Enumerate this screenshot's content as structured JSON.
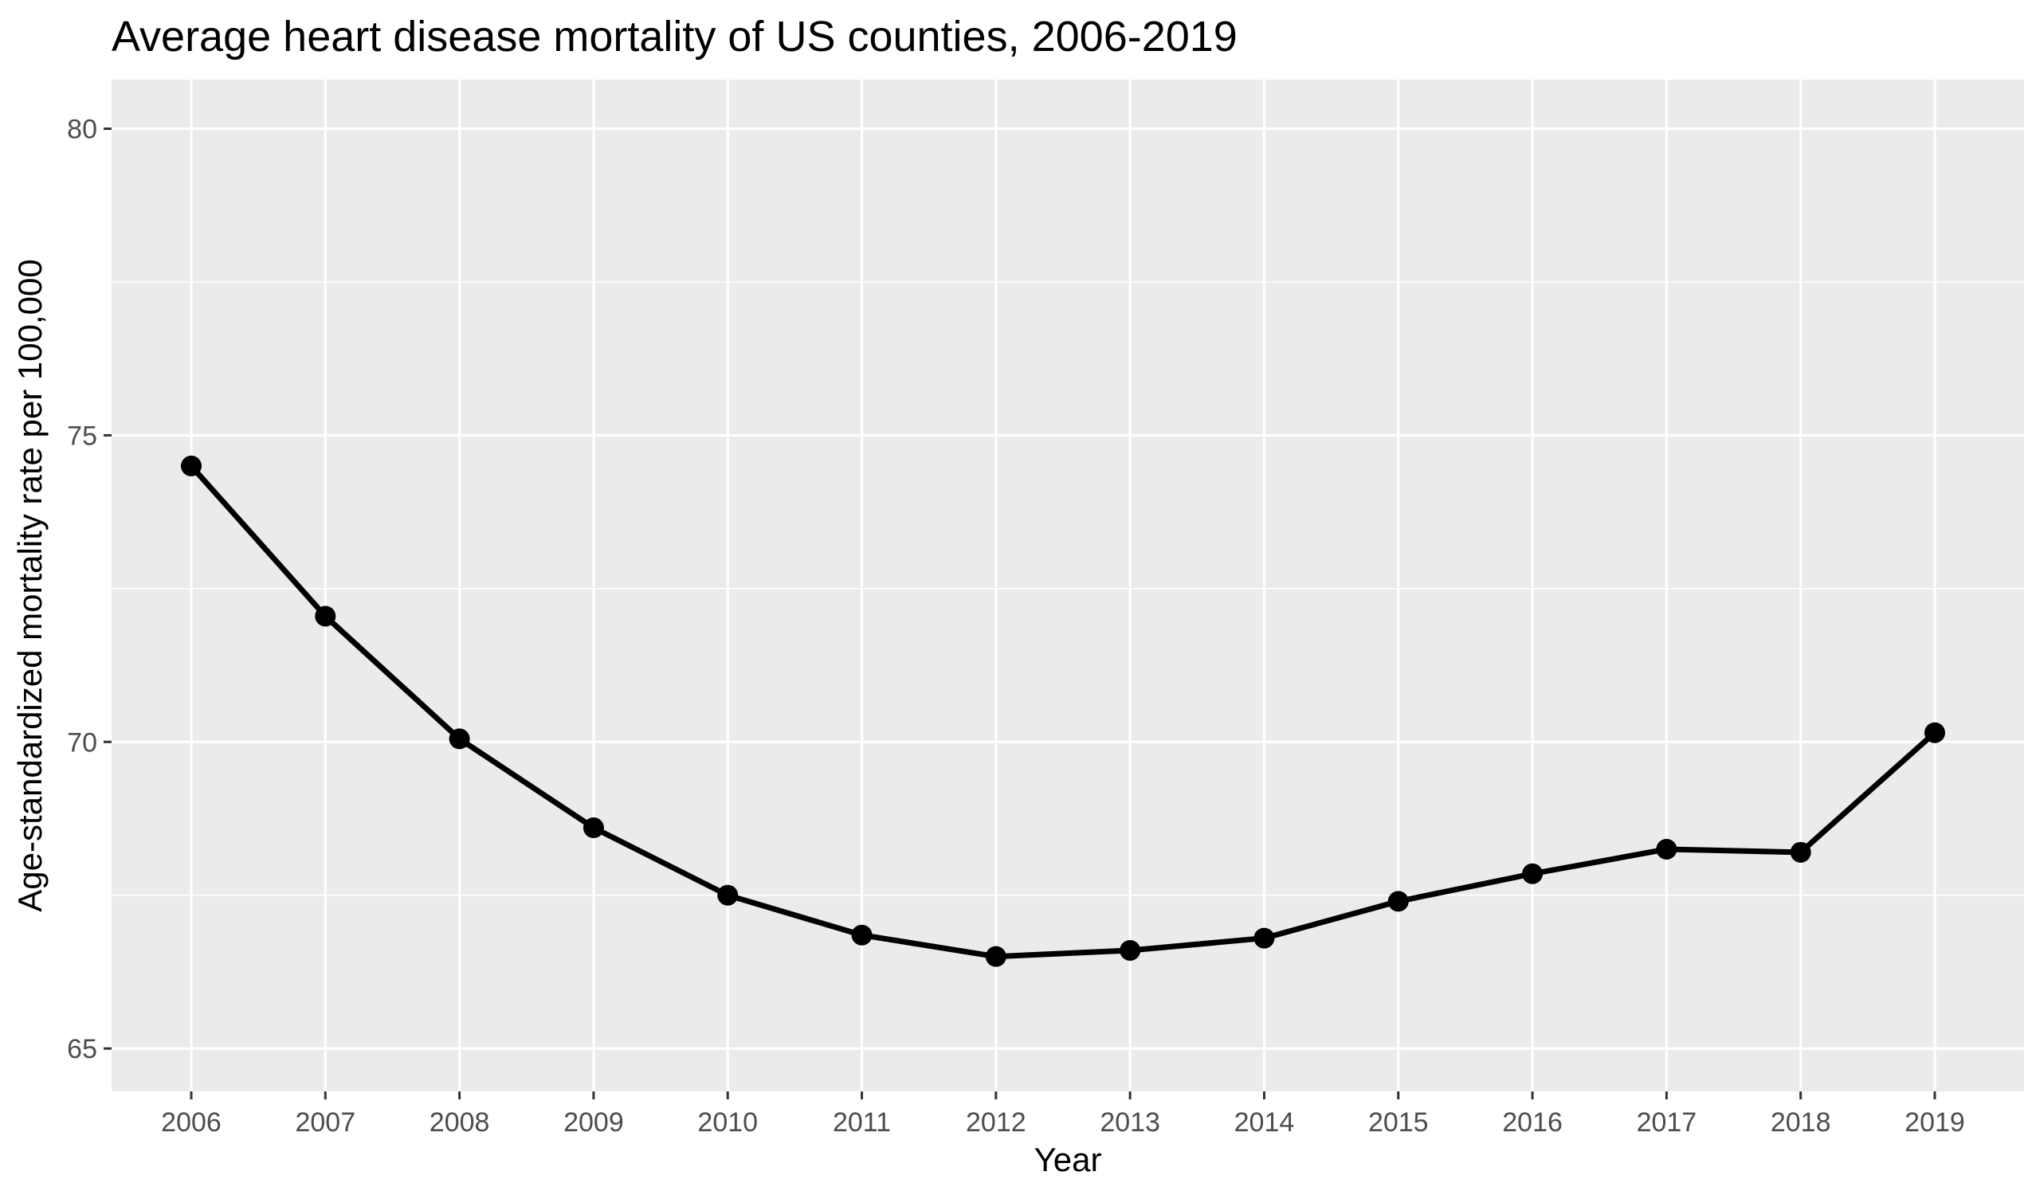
{
  "chart_data": {
    "type": "line",
    "title": "Average heart disease mortality of US counties, 2006-2019",
    "xlabel": "Year",
    "ylabel": "Age-standardized mortality rate per 100,000",
    "x": [
      "2006",
      "2007",
      "2008",
      "2009",
      "2010",
      "2011",
      "2012",
      "2013",
      "2014",
      "2015",
      "2016",
      "2017",
      "2018",
      "2019"
    ],
    "series": [
      {
        "values": [
          74.5,
          72.05,
          70.05,
          68.6,
          67.5,
          66.85,
          66.5,
          66.6,
          66.8,
          67.4,
          67.85,
          68.25,
          68.2,
          70.15
        ],
        "color": "#000000",
        "markers": true
      }
    ],
    "yticks": [
      65,
      70,
      75,
      80
    ],
    "ylim": [
      64.3,
      80.8
    ],
    "grid": true,
    "panel_background": "#ebebeb",
    "grid_color": "#ffffff"
  }
}
